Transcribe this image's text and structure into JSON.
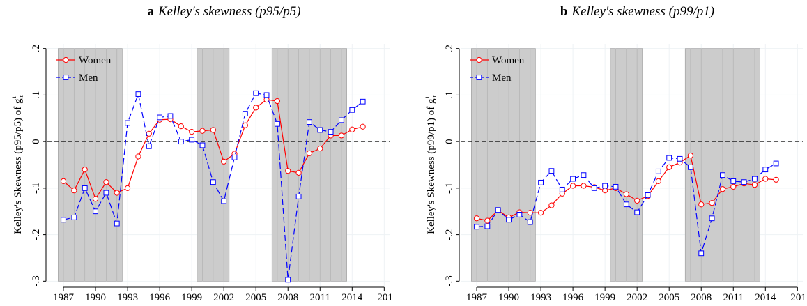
{
  "chart_data": [
    {
      "type": "line",
      "panel": "a",
      "title": "Kelley's skewness (p95/p5)",
      "ylabel": "Kelley's Skewness (p95/p5) of g",
      "ylabel_sup": "1",
      "ylabel_sub": "it",
      "x": [
        1987,
        1988,
        1989,
        1990,
        1991,
        1992,
        1993,
        1994,
        1995,
        1996,
        1997,
        1998,
        1999,
        2000,
        2001,
        2002,
        2003,
        2004,
        2005,
        2006,
        2007,
        2008,
        2009,
        2010,
        2011,
        2012,
        2013,
        2014,
        2015
      ],
      "series": [
        {
          "name": "Women",
          "color": "#ff0000",
          "marker": "circle",
          "dash": false,
          "values": [
            -0.085,
            -0.105,
            -0.06,
            -0.123,
            -0.087,
            -0.11,
            -0.1,
            -0.032,
            0.017,
            0.047,
            0.048,
            0.033,
            0.021,
            0.023,
            0.025,
            -0.043,
            -0.026,
            0.035,
            0.073,
            0.09,
            0.087,
            -0.063,
            -0.067,
            -0.025,
            -0.015,
            0.013,
            0.013,
            0.026,
            0.032
          ]
        },
        {
          "name": "Men",
          "color": "#0000ff",
          "marker": "square",
          "dash": true,
          "values": [
            -0.168,
            -0.163,
            -0.1,
            -0.15,
            -0.11,
            -0.176,
            0.04,
            0.102,
            -0.01,
            0.052,
            0.055,
            0.0,
            0.004,
            -0.008,
            -0.087,
            -0.128,
            -0.034,
            0.06,
            0.104,
            0.1,
            0.038,
            -0.297,
            -0.118,
            0.042,
            0.025,
            0.021,
            0.046,
            0.068,
            0.086
          ]
        }
      ],
      "shaded": [
        [
          1986.5,
          1992.5
        ],
        [
          1999.5,
          2002.5
        ],
        [
          2006.5,
          2013.5
        ]
      ],
      "hline": 0,
      "xlim": [
        1985.5,
        2017.5
      ],
      "xticks": [
        1987,
        1990,
        1993,
        1996,
        1999,
        2002,
        2005,
        2008,
        2011,
        2014,
        {
          "value": 2017,
          "label": "201"
        }
      ],
      "ylim": [
        -0.31,
        0.21
      ],
      "yticks": [
        {
          "value": 0.2,
          "label": ".2"
        },
        {
          "value": 0.1,
          "label": ".1"
        },
        0,
        {
          "value": -0.1,
          "label": "-.1"
        },
        {
          "value": -0.2,
          "label": "-.2"
        },
        {
          "value": -0.3,
          "label": "-.3"
        }
      ],
      "grid": true,
      "legend": "top-left"
    },
    {
      "type": "line",
      "panel": "b",
      "title": "Kelley's skewness (p99/p1)",
      "ylabel": "Kelley's Skewness (p99/p1) of g",
      "ylabel_sup": "1",
      "ylabel_sub": "it",
      "x": [
        1987,
        1988,
        1989,
        1990,
        1991,
        1992,
        1993,
        1994,
        1995,
        1996,
        1997,
        1998,
        1999,
        2000,
        2001,
        2002,
        2003,
        2004,
        2005,
        2006,
        2007,
        2008,
        2009,
        2010,
        2011,
        2012,
        2013,
        2014,
        2015
      ],
      "series": [
        {
          "name": "Women",
          "color": "#ff0000",
          "marker": "circle",
          "dash": false,
          "values": [
            -0.165,
            -0.17,
            -0.148,
            -0.163,
            -0.152,
            -0.153,
            -0.153,
            -0.137,
            -0.112,
            -0.095,
            -0.095,
            -0.098,
            -0.105,
            -0.1,
            -0.113,
            -0.127,
            -0.117,
            -0.085,
            -0.055,
            -0.045,
            -0.03,
            -0.135,
            -0.132,
            -0.102,
            -0.097,
            -0.09,
            -0.093,
            -0.08,
            -0.082
          ]
        },
        {
          "name": "Men",
          "color": "#0000ff",
          "marker": "square",
          "dash": true,
          "values": [
            -0.183,
            -0.182,
            -0.147,
            -0.168,
            -0.157,
            -0.173,
            -0.088,
            -0.063,
            -0.103,
            -0.08,
            -0.072,
            -0.1,
            -0.095,
            -0.097,
            -0.135,
            -0.152,
            -0.115,
            -0.064,
            -0.035,
            -0.037,
            -0.055,
            -0.24,
            -0.165,
            -0.072,
            -0.085,
            -0.087,
            -0.08,
            -0.06,
            -0.047
          ]
        }
      ],
      "shaded": [
        [
          1986.5,
          1992.5
        ],
        [
          1999.5,
          2002.5
        ],
        [
          2006.5,
          2013.5
        ]
      ],
      "hline": 0,
      "xlim": [
        1985.5,
        2017.5
      ],
      "xticks": [
        1987,
        1990,
        1993,
        1996,
        1999,
        2002,
        2005,
        2008,
        2011,
        2014,
        {
          "value": 2017,
          "label": "201"
        }
      ],
      "ylim": [
        -0.31,
        0.21
      ],
      "yticks": [
        {
          "value": 0.2,
          "label": ".2"
        },
        {
          "value": 0.1,
          "label": ".1"
        },
        0,
        {
          "value": -0.1,
          "label": "-.1"
        },
        {
          "value": -0.2,
          "label": "-.2"
        },
        {
          "value": -0.3,
          "label": "-.3"
        }
      ],
      "grid": true,
      "legend": "top-left"
    }
  ]
}
